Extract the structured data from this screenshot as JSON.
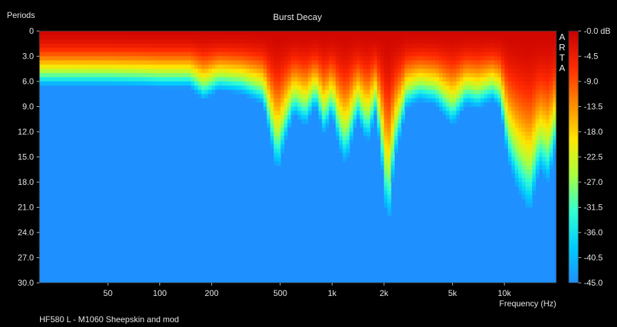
{
  "chart_data": {
    "type": "heatmap",
    "title": "Burst Decay",
    "subtitle": "HF580 L - M1060 Sheepskin and mod",
    "watermark": "ARTA",
    "ylabel": "Periods",
    "xlabel": "Frequency (Hz)",
    "x_scale": "log",
    "xlim": [
      20,
      20000
    ],
    "ylim": [
      0,
      30
    ],
    "y_inverted": true,
    "x_ticks": [
      {
        "value": 50,
        "label": "50"
      },
      {
        "value": 100,
        "label": "100"
      },
      {
        "value": 200,
        "label": "200"
      },
      {
        "value": 500,
        "label": "500"
      },
      {
        "value": 1000,
        "label": "1k"
      },
      {
        "value": 2000,
        "label": "2k"
      },
      {
        "value": 5000,
        "label": "5k"
      },
      {
        "value": 10000,
        "label": "10k"
      }
    ],
    "y_ticks": [
      "0",
      "3.0",
      "6.0",
      "9.0",
      "12.0",
      "15.0",
      "18.0",
      "21.0",
      "24.0",
      "27.0",
      "30.0"
    ],
    "colorbar": {
      "unit": "dB",
      "range": [
        -45,
        0
      ],
      "ticks": [
        "-0.0 dB",
        "-4.5",
        "-9.0",
        "-13.5",
        "-18.0",
        "-22.5",
        "-27.0",
        "-31.5",
        "-36.0",
        "-40.5",
        "-45.0"
      ],
      "colors": [
        "#c80000",
        "#ff2a00",
        "#ff8800",
        "#ffe600",
        "#a8ff40",
        "#33ffd0",
        "#00ccff",
        "#1e90ff"
      ]
    },
    "decay_profile": {
      "frequency_hz": [
        20,
        30,
        50,
        80,
        100,
        150,
        180,
        220,
        300,
        400,
        480,
        530,
        600,
        700,
        800,
        900,
        1000,
        1100,
        1200,
        1400,
        1600,
        1800,
        2000,
        2100,
        2300,
        2700,
        3200,
        4000,
        5000,
        6000,
        7000,
        8500,
        9500,
        10500,
        12000,
        14000,
        16000,
        18000,
        20000
      ],
      "decay_periods_to_floor": [
        6.3,
        6.3,
        6.3,
        6.4,
        6.5,
        6.5,
        8.0,
        6.8,
        7.2,
        8.5,
        16.5,
        13.0,
        9.5,
        11.0,
        8.5,
        12.0,
        9.5,
        13.5,
        15.5,
        10.0,
        13.0,
        9.5,
        18.0,
        23.5,
        15.0,
        9.0,
        8.0,
        8.5,
        11.0,
        8.5,
        9.0,
        8.0,
        9.0,
        15.0,
        18.5,
        21.0,
        16.0,
        17.5,
        13.0
      ]
    },
    "background_level_db": -40.5,
    "grid": false,
    "legend": "colorbar right"
  }
}
